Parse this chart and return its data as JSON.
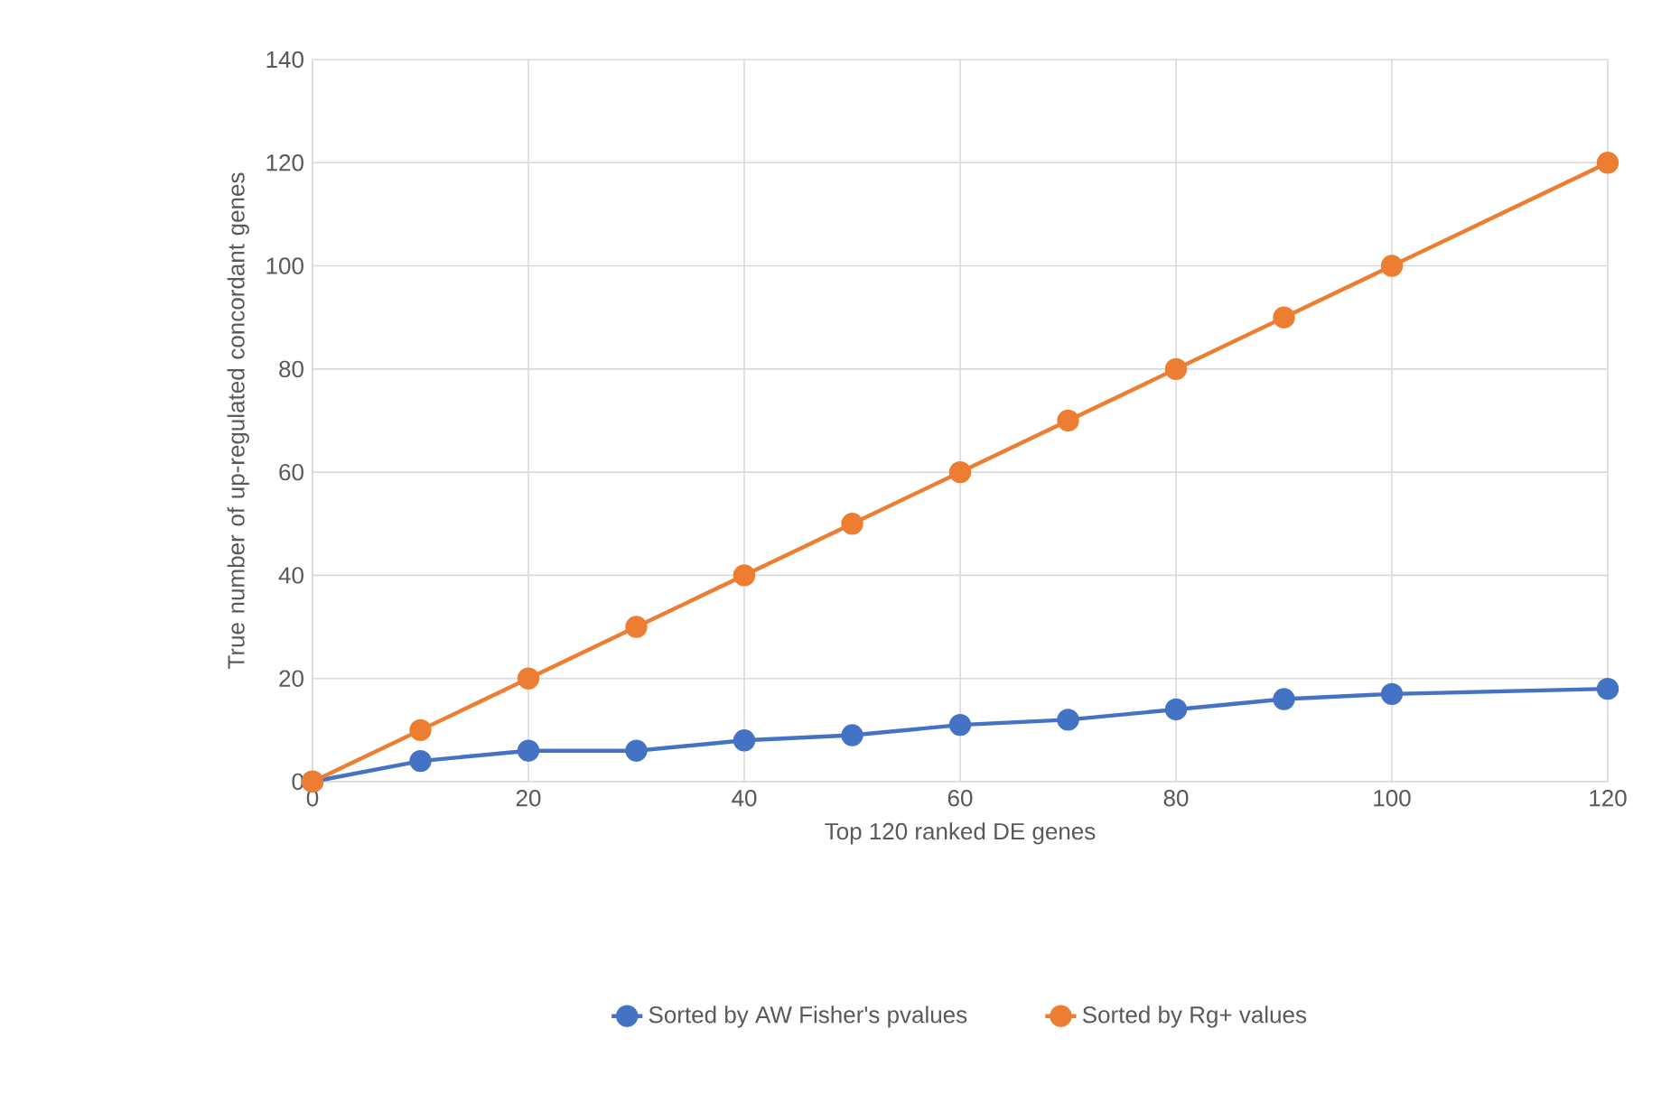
{
  "chart_data": {
    "type": "line",
    "xlabel": "Top 120 ranked DE genes",
    "ylabel": "True number of up-regulated concordant genes",
    "x": [
      0,
      10,
      20,
      30,
      40,
      50,
      60,
      70,
      80,
      90,
      100,
      120
    ],
    "series": [
      {
        "name": "Sorted by AW Fisher's pvalues",
        "color": "#4472c4",
        "values": [
          0,
          4,
          6,
          6,
          8,
          9,
          11,
          12,
          14,
          16,
          17,
          18
        ]
      },
      {
        "name": "Sorted by Rg+ values",
        "color": "#ed7d31",
        "values": [
          0,
          10,
          20,
          30,
          40,
          50,
          60,
          70,
          80,
          90,
          100,
          120
        ]
      }
    ],
    "xlim": [
      0,
      120
    ],
    "xticks": [
      0,
      20,
      40,
      60,
      80,
      100,
      120
    ],
    "ylim": [
      0,
      140
    ],
    "yticks": [
      0,
      20,
      40,
      60,
      80,
      100,
      120,
      140
    ],
    "grid": true,
    "legend": "bottom",
    "marker": "circle",
    "line_style": "solid"
  }
}
